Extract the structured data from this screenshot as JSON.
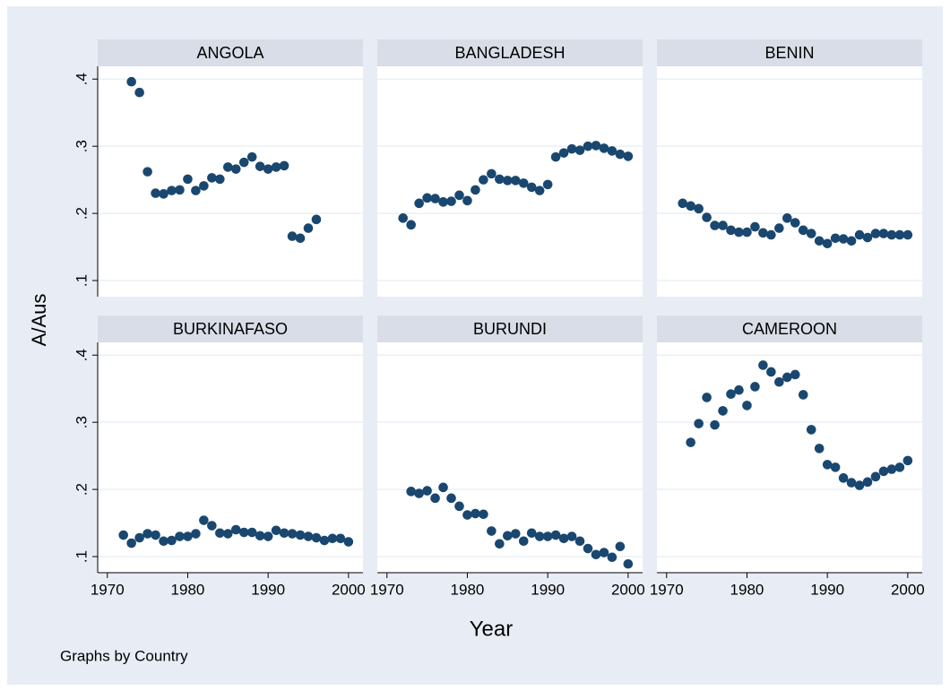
{
  "chart_data": {
    "type": "scatter",
    "color": "#1a476f",
    "grid": true,
    "xlim": [
      1968.8,
      2001.8
    ],
    "xticks": [
      1970,
      1980,
      1990,
      2000
    ],
    "ylim": [
      0.076,
      0.419
    ],
    "yticks": [
      {
        "value": 0.1,
        "label": ".1"
      },
      {
        "value": 0.2,
        "label": ".2"
      },
      {
        "value": 0.3,
        "label": ".3"
      },
      {
        "value": 0.4,
        "label": ".4"
      }
    ],
    "x_label": "Year",
    "y_label": "A/Aus",
    "note": "Graphs by Country",
    "panels": [
      {
        "title": "ANGOLA",
        "x": [
          1973,
          1974,
          1975,
          1976,
          1977,
          1978,
          1979,
          1980,
          1981,
          1982,
          1983,
          1984,
          1985,
          1986,
          1987,
          1988,
          1989,
          1990,
          1991,
          1992,
          1993,
          1994,
          1995,
          1996
        ],
        "values": [
          0.396,
          0.38,
          0.262,
          0.23,
          0.229,
          0.234,
          0.235,
          0.251,
          0.234,
          0.241,
          0.253,
          0.251,
          0.269,
          0.266,
          0.276,
          0.284,
          0.27,
          0.266,
          0.269,
          0.271,
          0.166,
          0.163,
          0.178,
          0.191
        ]
      },
      {
        "title": "BANGLADESH",
        "x": [
          1972,
          1973,
          1974,
          1975,
          1976,
          1977,
          1978,
          1979,
          1980,
          1981,
          1982,
          1983,
          1984,
          1985,
          1986,
          1987,
          1988,
          1989,
          1990,
          1991,
          1992,
          1993,
          1994,
          1995,
          1996,
          1997,
          1998,
          1999,
          2000
        ],
        "values": [
          0.193,
          0.183,
          0.215,
          0.223,
          0.222,
          0.217,
          0.218,
          0.227,
          0.219,
          0.235,
          0.25,
          0.259,
          0.251,
          0.249,
          0.249,
          0.245,
          0.239,
          0.234,
          0.243,
          0.284,
          0.29,
          0.296,
          0.294,
          0.3,
          0.301,
          0.297,
          0.293,
          0.288,
          0.285
        ]
      },
      {
        "title": "BENIN",
        "x": [
          1972,
          1973,
          1974,
          1975,
          1976,
          1977,
          1978,
          1979,
          1980,
          1981,
          1982,
          1983,
          1984,
          1985,
          1986,
          1987,
          1988,
          1989,
          1990,
          1991,
          1992,
          1993,
          1994,
          1995,
          1996,
          1997,
          1998,
          1999,
          2000
        ],
        "values": [
          0.215,
          0.211,
          0.207,
          0.194,
          0.182,
          0.182,
          0.175,
          0.172,
          0.172,
          0.18,
          0.171,
          0.168,
          0.178,
          0.193,
          0.186,
          0.175,
          0.17,
          0.159,
          0.155,
          0.163,
          0.162,
          0.159,
          0.168,
          0.164,
          0.17,
          0.17,
          0.168,
          0.168,
          0.168
        ]
      },
      {
        "title": "BURKINAFASO",
        "x": [
          1972,
          1973,
          1974,
          1975,
          1976,
          1977,
          1978,
          1979,
          1980,
          1981,
          1982,
          1983,
          1984,
          1985,
          1986,
          1987,
          1988,
          1989,
          1990,
          1991,
          1992,
          1993,
          1994,
          1995,
          1996,
          1997,
          1998,
          1999,
          2000
        ],
        "values": [
          0.132,
          0.12,
          0.128,
          0.134,
          0.132,
          0.123,
          0.124,
          0.13,
          0.13,
          0.134,
          0.154,
          0.146,
          0.135,
          0.134,
          0.14,
          0.136,
          0.136,
          0.131,
          0.13,
          0.139,
          0.135,
          0.134,
          0.132,
          0.13,
          0.128,
          0.124,
          0.127,
          0.127,
          0.122
        ]
      },
      {
        "title": "BURUNDI",
        "x": [
          1973,
          1974,
          1975,
          1976,
          1977,
          1978,
          1979,
          1980,
          1981,
          1982,
          1983,
          1984,
          1985,
          1986,
          1987,
          1988,
          1989,
          1990,
          1991,
          1992,
          1993,
          1994,
          1995,
          1996,
          1997,
          1998,
          1999,
          2000
        ],
        "values": [
          0.197,
          0.194,
          0.198,
          0.187,
          0.203,
          0.187,
          0.175,
          0.162,
          0.164,
          0.163,
          0.138,
          0.119,
          0.131,
          0.134,
          0.123,
          0.135,
          0.13,
          0.13,
          0.132,
          0.127,
          0.13,
          0.123,
          0.112,
          0.103,
          0.106,
          0.099,
          0.115,
          0.089
        ]
      },
      {
        "title": "CAMEROON",
        "x": [
          1973,
          1974,
          1975,
          1976,
          1977,
          1978,
          1979,
          1980,
          1981,
          1982,
          1983,
          1984,
          1985,
          1986,
          1987,
          1988,
          1989,
          1990,
          1991,
          1992,
          1993,
          1994,
          1995,
          1996,
          1997,
          1998,
          1999,
          2000
        ],
        "values": [
          0.27,
          0.298,
          0.337,
          0.296,
          0.317,
          0.342,
          0.348,
          0.325,
          0.353,
          0.385,
          0.375,
          0.36,
          0.367,
          0.371,
          0.341,
          0.289,
          0.261,
          0.237,
          0.233,
          0.217,
          0.21,
          0.206,
          0.211,
          0.219,
          0.227,
          0.23,
          0.233,
          0.243
        ]
      }
    ]
  }
}
